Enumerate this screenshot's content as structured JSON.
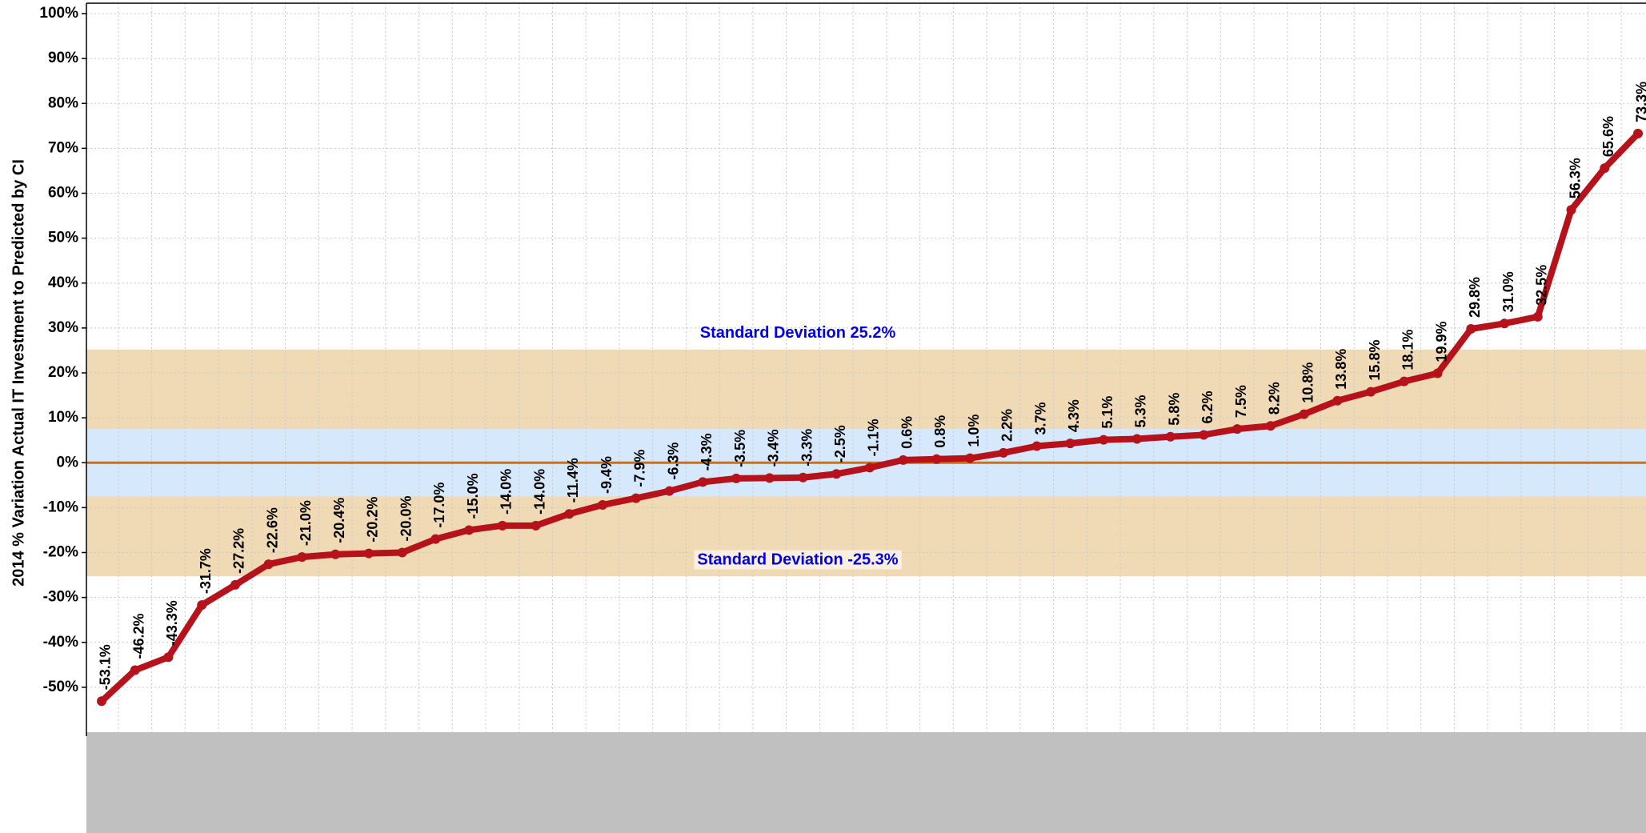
{
  "chart_data": {
    "type": "line",
    "y_label": "2014 % Variation Actual IT Investment to Predicted by CI",
    "series": [
      {
        "color": "#b5121b",
        "values": [
          -53.1,
          -46.2,
          -43.3,
          -31.7,
          -27.2,
          -22.6,
          -21.0,
          -20.4,
          -20.2,
          -20.0,
          -17.0,
          -15.0,
          -14.0,
          -14.0,
          -11.4,
          -9.4,
          -7.9,
          -6.3,
          -4.3,
          -3.5,
          -3.4,
          -3.3,
          -2.5,
          -1.1,
          0.6,
          0.8,
          1.0,
          2.2,
          3.7,
          4.3,
          5.1,
          5.3,
          5.8,
          6.2,
          7.5,
          8.2,
          10.8,
          13.8,
          15.8,
          18.1,
          19.9,
          29.8,
          31.0,
          32.5,
          56.3,
          65.6,
          73.3
        ],
        "value_labels": [
          "-53.1%",
          "-46.2%",
          "-43.3%",
          "-31.7%",
          "-27.2%",
          "-22.6%",
          "-21.0%",
          "-20.4%",
          "-20.2%",
          "-20.0%",
          "-17.0%",
          "-15.0%",
          "-14.0%",
          "-14.0%",
          "-11.4%",
          "-9.4%",
          "-7.9%",
          "-6.3%",
          "-4.3%",
          "-3.5%",
          "-3.4%",
          "-3.3%",
          "-2.5%",
          "-1.1%",
          "0.6%",
          "0.8%",
          "1.0%",
          "2.2%",
          "3.7%",
          "4.3%",
          "5.1%",
          "5.3%",
          "5.8%",
          "6.2%",
          "7.5%",
          "8.2%",
          "10.8%",
          "13.8%",
          "15.8%",
          "18.1%",
          "19.9%",
          "29.8%",
          "31.0%",
          "32.5%",
          "56.3%",
          "65.6%",
          "73.3%"
        ]
      }
    ],
    "ylim": [
      -60,
      100
    ],
    "yticks": [
      {
        "value": -50,
        "label": "-50%"
      },
      {
        "value": -40,
        "label": "-40%"
      },
      {
        "value": -30,
        "label": "-30%"
      },
      {
        "value": -20,
        "label": "-20%"
      },
      {
        "value": -10,
        "label": "-10%"
      },
      {
        "value": 0,
        "label": "0%"
      },
      {
        "value": 10,
        "label": "10%"
      },
      {
        "value": 20,
        "label": "20%"
      },
      {
        "value": 30,
        "label": "30%"
      },
      {
        "value": 40,
        "label": "40%"
      },
      {
        "value": 50,
        "label": "50%"
      },
      {
        "value": 60,
        "label": "60%"
      },
      {
        "value": 70,
        "label": "70%"
      },
      {
        "value": 80,
        "label": "80%"
      },
      {
        "value": 90,
        "label": "90%"
      },
      {
        "value": 100,
        "label": "100%"
      }
    ],
    "grid": true,
    "bands": [
      {
        "text": "Standard Deviation 25.2%",
        "value": 25.2,
        "color": "#f0d9b5"
      },
      {
        "text": "Standard Deviation -25.3%",
        "value": -25.3,
        "color": "#f0d9b5"
      }
    ],
    "inner_band": {
      "range": [
        -7.5,
        7.5
      ],
      "color": "#d6e8fc"
    },
    "reference_line": {
      "value": 0,
      "color": "#d4700a"
    }
  }
}
